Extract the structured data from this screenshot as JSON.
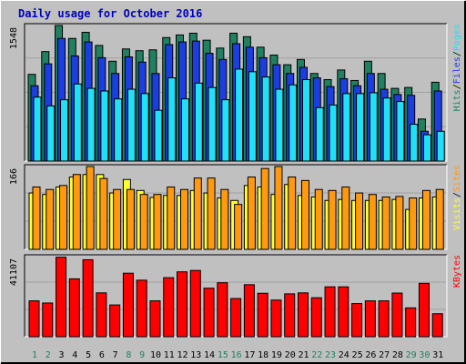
{
  "colors": {
    "background": "#c0c0c0",
    "plot_background": "#c0c0c0",
    "title": "#0000c0",
    "hits": "#208060",
    "files": "#1c3ee0",
    "pages": "#20e0f8",
    "visits": "#ffff30",
    "sites": "#ff9910",
    "kbytes": "#ff0000",
    "weekday_label": "#000000",
    "weekend_label": "#208060"
  },
  "chart_data": [
    {
      "type": "bar",
      "title": "Daily usage for October 2016",
      "ymax_label": "1548",
      "ylim": [
        0,
        1548
      ],
      "categories": [
        "1",
        "2",
        "3",
        "4",
        "5",
        "6",
        "7",
        "8",
        "9",
        "10",
        "11",
        "12",
        "13",
        "14",
        "15",
        "16",
        "17",
        "18",
        "19",
        "20",
        "21",
        "22",
        "23",
        "24",
        "25",
        "26",
        "27",
        "28",
        "29",
        "30",
        "31"
      ],
      "weekend_days": [
        "1",
        "2",
        "8",
        "9",
        "15",
        "16",
        "22",
        "23",
        "29",
        "30"
      ],
      "legend": [
        {
          "text": "Hits",
          "color": "#208060"
        },
        {
          "text": "/",
          "color": "#000000"
        },
        {
          "text": "Files",
          "color": "#1c3ee0"
        },
        {
          "text": "/",
          "color": "#000000"
        },
        {
          "text": "Pages",
          "color": "#20e0f8"
        }
      ],
      "series": [
        {
          "name": "Hits",
          "values": [
            990,
            1250,
            1548,
            1400,
            1470,
            1320,
            1140,
            1280,
            1260,
            1270,
            1410,
            1440,
            1460,
            1380,
            1290,
            1460,
            1420,
            1300,
            1210,
            1100,
            1160,
            1000,
            930,
            1040,
            920,
            1140,
            1000,
            830,
            840,
            480,
            900
          ]
        },
        {
          "name": "Files",
          "values": [
            860,
            1110,
            1400,
            1200,
            1360,
            1180,
            1000,
            1190,
            1130,
            1000,
            1330,
            1360,
            1370,
            1230,
            1160,
            1340,
            1300,
            1180,
            1100,
            1000,
            1070,
            950,
            850,
            940,
            860,
            1000,
            820,
            760,
            750,
            340,
            800
          ]
        },
        {
          "name": "Pages",
          "values": [
            730,
            630,
            700,
            880,
            830,
            800,
            710,
            820,
            770,
            580,
            950,
            710,
            890,
            840,
            700,
            1050,
            1020,
            960,
            820,
            870,
            930,
            610,
            640,
            770,
            770,
            780,
            720,
            680,
            420,
            300,
            340
          ]
        }
      ]
    },
    {
      "type": "bar",
      "ymax_label": "166",
      "ylim": [
        0,
        166
      ],
      "categories": [
        "1",
        "2",
        "3",
        "4",
        "5",
        "6",
        "7",
        "8",
        "9",
        "10",
        "11",
        "12",
        "13",
        "14",
        "15",
        "16",
        "17",
        "18",
        "19",
        "20",
        "21",
        "22",
        "23",
        "24",
        "25",
        "26",
        "27",
        "28",
        "29",
        "30",
        "31"
      ],
      "legend": [
        {
          "text": "Visits",
          "color": "#ffff30"
        },
        {
          "text": "/",
          "color": "#000000"
        },
        {
          "text": "Sites",
          "color": "#ff9910"
        }
      ],
      "series": [
        {
          "name": "Visits",
          "values": [
            113,
            110,
            125,
            145,
            150,
            150,
            113,
            140,
            118,
            104,
            108,
            108,
            118,
            113,
            103,
            98,
            128,
            125,
            110,
            130,
            108,
            105,
            98,
            100,
            98,
            98,
            98,
            100,
            80,
            103,
            105
          ]
        },
        {
          "name": "Sites",
          "values": [
            125,
            120,
            128,
            150,
            166,
            142,
            120,
            120,
            110,
            110,
            125,
            120,
            143,
            143,
            120,
            90,
            145,
            162,
            166,
            145,
            138,
            120,
            118,
            125,
            113,
            110,
            105,
            106,
            103,
            118,
            120
          ]
        }
      ]
    },
    {
      "type": "bar",
      "ymax_label": "41107",
      "ylim": [
        0,
        41107
      ],
      "categories": [
        "1",
        "2",
        "3",
        "4",
        "5",
        "6",
        "7",
        "8",
        "9",
        "10",
        "11",
        "12",
        "13",
        "14",
        "15",
        "16",
        "17",
        "18",
        "19",
        "20",
        "21",
        "22",
        "23",
        "24",
        "25",
        "26",
        "27",
        "28",
        "29",
        "30",
        "31"
      ],
      "legend": [
        {
          "text": "KBytes",
          "color": "#ff0000"
        }
      ],
      "series": [
        {
          "name": "KBytes",
          "values": [
            18400,
            17300,
            40800,
            29700,
            39500,
            22500,
            16300,
            32600,
            29000,
            18400,
            30300,
            33300,
            34000,
            24900,
            27700,
            19600,
            26700,
            22300,
            18800,
            22000,
            22500,
            20000,
            25600,
            25600,
            17000,
            18400,
            18400,
            22400,
            14800,
            27400,
            11800
          ]
        }
      ]
    }
  ]
}
